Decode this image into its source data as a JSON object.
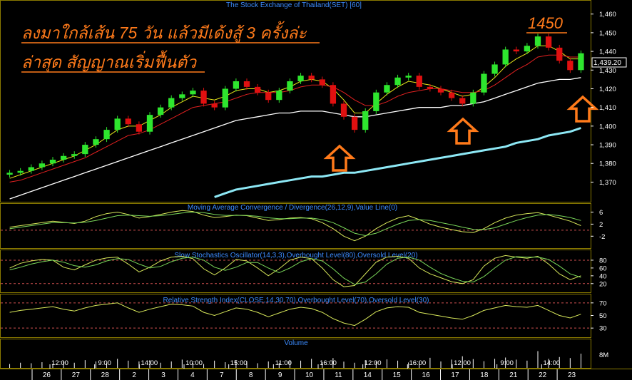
{
  "chart_title": "The Stock Exchange of Thailand(SET) [60]",
  "annotation": {
    "line1": "ลงมาใกล้เส้น 75 วัน แล้วมีเด้งสู้  3 ครั้งล่ะ",
    "line2": "ล่าสุด สัญญาณเริ่มฟื้นตัว",
    "target_label": "1450"
  },
  "colors": {
    "background": "#000000",
    "grid": "#8a7a00",
    "axis_text": "#ffffff",
    "panel_title": "#3c8cff",
    "up_candle": "#2ee62e",
    "down_candle": "#e01010",
    "ma_fast": "#e6e61a",
    "ma_mid": "#e02020",
    "ma_slow": "#ffffff",
    "ma_long": "#8de8f5",
    "annotation": "#ff7a1a",
    "osc_main": "#d8e85a",
    "osc_signal": "#7ad85a",
    "level_line": "#d05050"
  },
  "chart_data": [
    {
      "type": "candlestick",
      "panel": "price",
      "title": "The Stock Exchange of Thailand(SET) [60]",
      "ylim": [
        1361,
        1466
      ],
      "y_ticks": [
        "1,460",
        "1,450",
        "1,440",
        "1,430",
        "1,420",
        "1,410",
        "1,400",
        "1,390",
        "1,380",
        "1,370"
      ],
      "last_price": "1,439.20",
      "closes": [
        1375,
        1376,
        1378,
        1380,
        1382,
        1384,
        1385,
        1390,
        1393,
        1398,
        1404,
        1401,
        1397,
        1406,
        1410,
        1415,
        1417,
        1419,
        1412,
        1410,
        1420,
        1424,
        1421,
        1418,
        1414,
        1419,
        1424,
        1427,
        1425,
        1422,
        1412,
        1405,
        1398,
        1408,
        1418,
        1422,
        1426,
        1427,
        1421,
        1420,
        1418,
        1415,
        1412,
        1418,
        1428,
        1433,
        1441,
        1440,
        1443,
        1448,
        1442,
        1435,
        1430,
        1439
      ],
      "moving_averages": [
        {
          "label": "fast",
          "values": [
            1372,
            1374,
            1376,
            1378,
            1380,
            1382,
            1384,
            1387,
            1390,
            1394,
            1398,
            1400,
            1400,
            1403,
            1406,
            1410,
            1413,
            1416,
            1415,
            1414,
            1416,
            1419,
            1420,
            1420,
            1418,
            1419,
            1421,
            1424,
            1425,
            1424,
            1420,
            1414,
            1407,
            1407,
            1412,
            1417,
            1421,
            1424,
            1423,
            1422,
            1420,
            1418,
            1416,
            1417,
            1421,
            1426,
            1432,
            1436,
            1439,
            1443,
            1443,
            1440,
            1436,
            1436
          ]
        },
        {
          "label": "mid",
          "values": [
            1370,
            1371,
            1373,
            1375,
            1377,
            1379,
            1381,
            1383,
            1386,
            1389,
            1392,
            1395,
            1396,
            1398,
            1401,
            1404,
            1407,
            1410,
            1411,
            1412,
            1413,
            1415,
            1417,
            1418,
            1418,
            1418,
            1419,
            1421,
            1422,
            1422,
            1421,
            1418,
            1414,
            1411,
            1411,
            1413,
            1416,
            1418,
            1419,
            1420,
            1420,
            1419,
            1418,
            1418,
            1419,
            1422,
            1426,
            1430,
            1433,
            1437,
            1438,
            1438,
            1437,
            1437
          ]
        },
        {
          "label": "slow",
          "values": [
            1361,
            1363,
            1365,
            1367,
            1369,
            1371,
            1373,
            1375,
            1377,
            1379,
            1381,
            1383,
            1385,
            1387,
            1389,
            1391,
            1393,
            1395,
            1397,
            1399,
            1401,
            1403,
            1404,
            1405,
            1406,
            1407,
            1407,
            1408,
            1408,
            1408,
            1407,
            1406,
            1405,
            1405,
            1406,
            1407,
            1408,
            1409,
            1410,
            1410,
            1410,
            1411,
            1411,
            1412,
            1413,
            1415,
            1417,
            1419,
            1421,
            1423,
            1424,
            1425,
            1425,
            1426
          ]
        },
        {
          "label": "long",
          "values": [
            null,
            null,
            null,
            null,
            null,
            null,
            null,
            null,
            null,
            null,
            null,
            null,
            null,
            null,
            null,
            null,
            null,
            null,
            null,
            1362,
            1364,
            1366,
            1367,
            1368,
            1369,
            1370,
            1371,
            1372,
            1373,
            1373,
            1374,
            1375,
            1375,
            1376,
            1377,
            1378,
            1379,
            1380,
            1381,
            1382,
            1383,
            1384,
            1385,
            1386,
            1387,
            1388,
            1389,
            1391,
            1392,
            1393,
            1395,
            1396,
            1397,
            1399
          ]
        }
      ]
    },
    {
      "type": "line",
      "panel": "macd",
      "title": "Moving Average Convergence / Divergence(26,12,9),Value Line(0)",
      "ylim": [
        -5,
        8
      ],
      "y_ticks": [
        "6",
        "2",
        "-2"
      ],
      "series": [
        {
          "label": "macd",
          "values": [
            1,
            1.5,
            2,
            2.5,
            3,
            2.6,
            2.2,
            3,
            4.5,
            5.5,
            6,
            5.2,
            4,
            4.5,
            5.2,
            6,
            6.5,
            6.2,
            5,
            4.2,
            4.5,
            5,
            4.8,
            4,
            3.2,
            3.5,
            4,
            4.2,
            3.8,
            2.5,
            0.5,
            -2,
            -3.5,
            -2,
            0.5,
            2.5,
            4,
            4.8,
            3.5,
            2,
            1,
            0.2,
            -0.5,
            -0.8,
            0.5,
            2.5,
            4,
            5,
            5.5,
            5.8,
            5,
            4,
            3,
            1.5
          ]
        },
        {
          "label": "signal",
          "values": [
            0.5,
            1,
            1.5,
            2,
            2.5,
            2.5,
            2.4,
            2.6,
            3.2,
            4,
            4.8,
            5,
            4.8,
            4.6,
            4.8,
            5.2,
            5.7,
            6,
            5.8,
            5.2,
            4.9,
            4.9,
            4.9,
            4.6,
            4.1,
            3.8,
            3.8,
            4,
            4,
            3.5,
            2.5,
            0.8,
            -1,
            -1.8,
            -1,
            0.5,
            2,
            3.2,
            3.5,
            3.2,
            2.5,
            1.8,
            1,
            0.3,
            0.2,
            0.8,
            2,
            3.2,
            4.2,
            5,
            5.2,
            4.8,
            4.2,
            3.2
          ]
        }
      ],
      "levels": [
        0
      ]
    },
    {
      "type": "line",
      "panel": "stochastic",
      "title": "Slow Stochastics Oscillator(14,3,3),Overbought Level(80),Oversold Level(20)",
      "ylim": [
        5,
        100
      ],
      "y_ticks": [
        "80",
        "60",
        "40",
        "20"
      ],
      "series": [
        {
          "label": "%K",
          "values": [
            60,
            72,
            78,
            82,
            80,
            62,
            55,
            68,
            80,
            86,
            88,
            70,
            50,
            62,
            78,
            88,
            90,
            84,
            58,
            42,
            60,
            82,
            78,
            60,
            40,
            58,
            80,
            88,
            84,
            60,
            30,
            12,
            15,
            45,
            75,
            88,
            90,
            85,
            60,
            45,
            35,
            25,
            20,
            30,
            65,
            85,
            92,
            88,
            85,
            90,
            70,
            45,
            30,
            40
          ]
        },
        {
          "label": "%D",
          "values": [
            55,
            62,
            70,
            76,
            80,
            75,
            66,
            62,
            68,
            78,
            84,
            82,
            70,
            60,
            64,
            76,
            85,
            88,
            80,
            62,
            54,
            62,
            74,
            74,
            60,
            48,
            60,
            76,
            84,
            78,
            58,
            34,
            18,
            24,
            45,
            70,
            85,
            88,
            80,
            62,
            46,
            35,
            26,
            24,
            38,
            60,
            80,
            89,
            88,
            88,
            82,
            65,
            45,
            36
          ]
        }
      ],
      "levels": [
        80,
        20
      ]
    },
    {
      "type": "line",
      "panel": "rsi",
      "title": "Relative Strength Index(CLOSE,14,30,70),Overbought Level(70),Oversold Level(30)",
      "ylim": [
        20,
        80
      ],
      "y_ticks": [
        "70",
        "50",
        "30"
      ],
      "series": [
        {
          "label": "rsi",
          "values": [
            55,
            58,
            60,
            62,
            64,
            60,
            57,
            62,
            66,
            68,
            70,
            62,
            55,
            60,
            64,
            68,
            67,
            65,
            55,
            50,
            56,
            62,
            60,
            55,
            48,
            54,
            60,
            63,
            61,
            55,
            45,
            38,
            34,
            44,
            56,
            62,
            64,
            63,
            55,
            52,
            49,
            46,
            44,
            50,
            58,
            62,
            66,
            64,
            63,
            66,
            58,
            50,
            46,
            52
          ]
        }
      ],
      "levels": [
        70,
        30
      ]
    },
    {
      "type": "bar",
      "panel": "volume",
      "title": "Volume",
      "y_ticks": [
        "8M"
      ],
      "values": [
        1.5,
        2,
        1.8,
        2.2,
        1.5,
        2.5,
        2,
        3,
        2.5,
        2,
        3.5,
        2.8,
        2.5,
        3,
        2,
        2.5,
        3.2,
        2,
        1.5,
        2.8,
        2.2,
        3,
        2.6,
        1.8,
        2.5,
        2,
        3,
        2.8,
        3.5,
        2.2,
        3.8,
        2.4,
        2,
        3,
        2.5,
        3.3,
        2.8,
        2.1,
        2.6,
        3.9,
        2.5,
        3.2,
        4.5,
        3.4,
        2.6,
        3.5,
        4,
        3.2,
        2.8,
        6.5,
        3.5,
        4.2,
        3.8,
        5.5
      ]
    }
  ],
  "x_axis": {
    "time_labels": [
      "12:00",
      "9:00",
      "14:00",
      "10:00",
      "15:00",
      "11:00",
      "16:00",
      "12:00",
      "16:00",
      "12:00",
      "9:00",
      "14:00"
    ],
    "date_labels": [
      "26",
      "27",
      "28",
      "2",
      "3",
      "4",
      "7",
      "8",
      "9",
      "10",
      "11",
      "14",
      "15",
      "16",
      "17",
      "18",
      "21",
      "22",
      "23"
    ]
  }
}
